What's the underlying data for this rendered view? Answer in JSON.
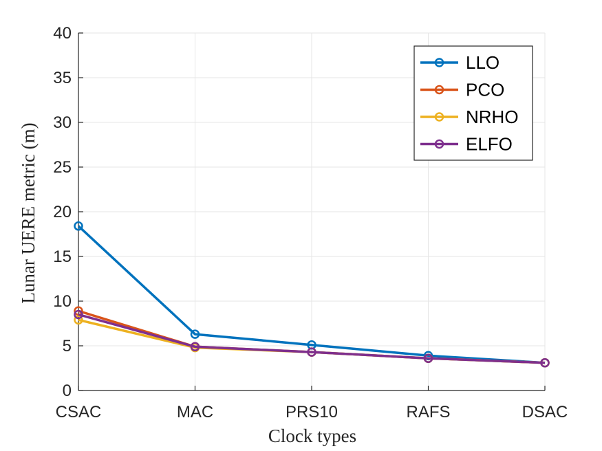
{
  "chart_data": {
    "type": "line",
    "title": "",
    "xlabel": "Clock types",
    "ylabel": "Lunar UERE metric (m)",
    "categories": [
      "CSAC",
      "MAC",
      "PRS10",
      "RAFS",
      "DSAC"
    ],
    "ylim": [
      0,
      40
    ],
    "yticks": [
      "0",
      "5",
      "10",
      "15",
      "20",
      "25",
      "30",
      "35",
      "40"
    ],
    "grid": true,
    "legend_position": "top-right",
    "series": [
      {
        "name": "LLO",
        "color": "#0072bd",
        "values": [
          18.4,
          6.3,
          5.1,
          3.9,
          3.1
        ]
      },
      {
        "name": "PCO",
        "color": "#d95319",
        "values": [
          8.9,
          4.9,
          4.3,
          3.6,
          3.1
        ]
      },
      {
        "name": "NRHO",
        "color": "#edb120",
        "values": [
          7.9,
          4.8,
          4.3,
          3.6,
          3.1
        ]
      },
      {
        "name": "ELFO",
        "color": "#7e2f8e",
        "values": [
          8.5,
          4.9,
          4.3,
          3.6,
          3.1
        ]
      }
    ]
  }
}
